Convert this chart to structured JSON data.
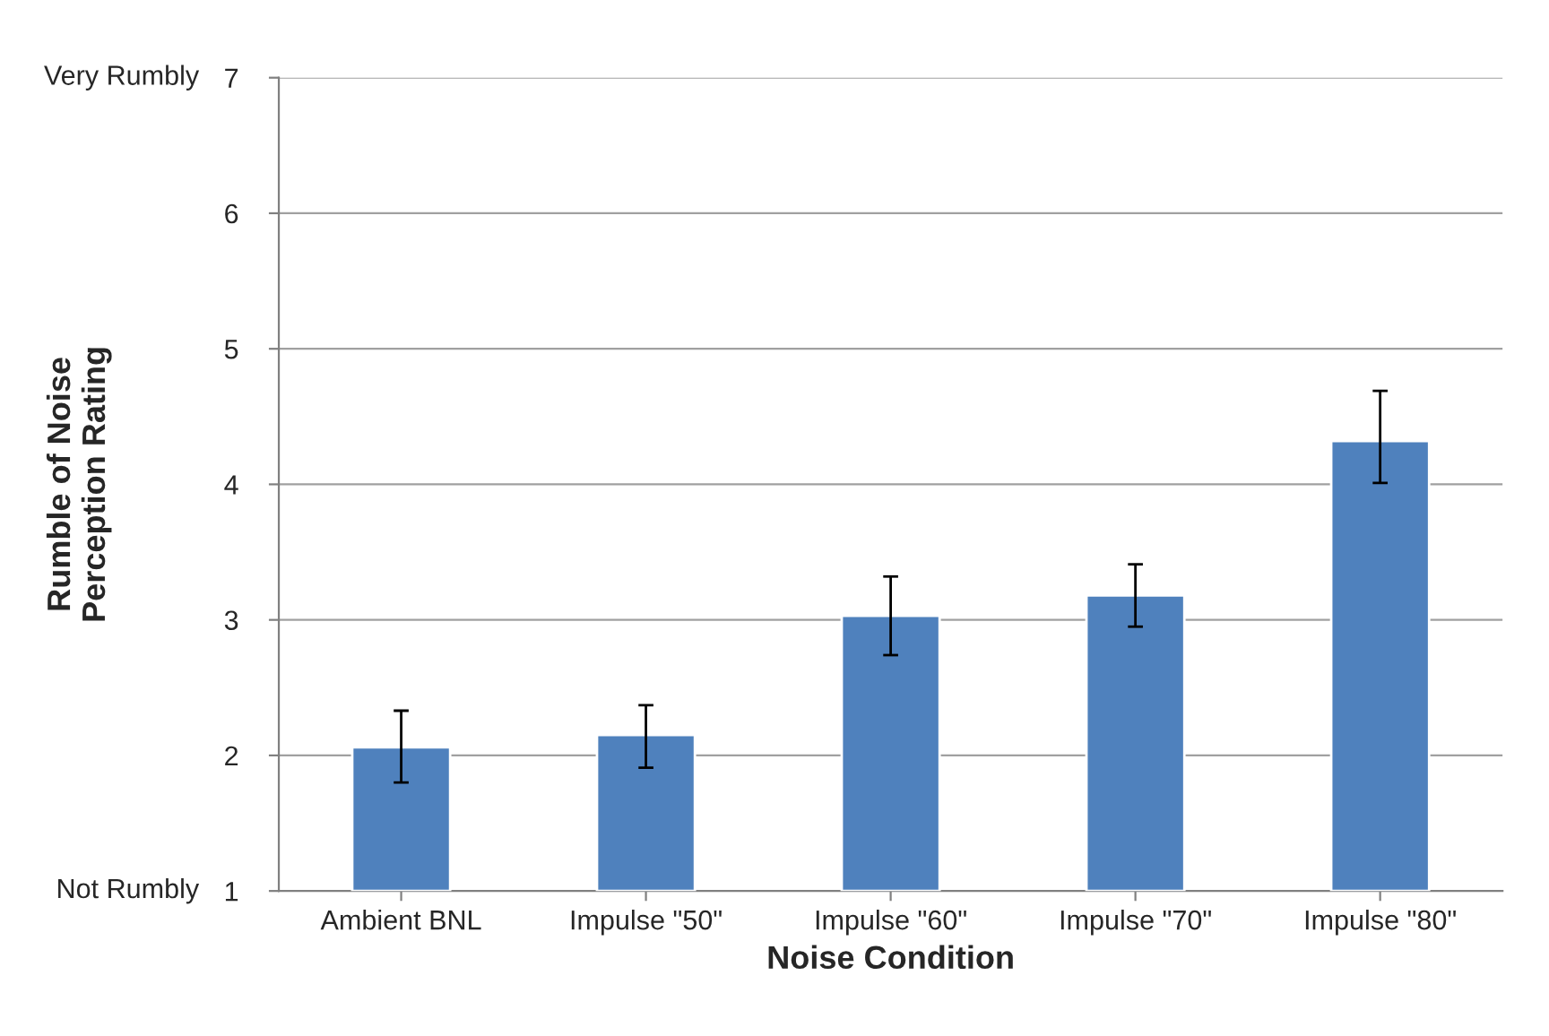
{
  "chart_data": {
    "type": "bar",
    "categories": [
      "Ambient BNL",
      "Impulse \"50\"",
      "Impulse \"60\"",
      "Impulse \"70\"",
      "Impulse \"80\""
    ],
    "values": [
      2.06,
      2.15,
      3.03,
      3.18,
      4.32
    ],
    "errors": [
      [
        1.8,
        2.33
      ],
      [
        1.91,
        2.37
      ],
      [
        2.74,
        3.32
      ],
      [
        2.95,
        3.41
      ],
      [
        4.01,
        4.69
      ]
    ],
    "color": "#4f81bd",
    "xlabel": "Noise Condition",
    "ylabel": "Rumble of Noise\nPerception Rating",
    "ylim": [
      1,
      7
    ],
    "yticks": [
      1,
      2,
      3,
      4,
      5,
      6,
      7
    ],
    "grid": "y",
    "annotations": [
      "Very Rumbly",
      "Not Rumbly"
    ]
  }
}
